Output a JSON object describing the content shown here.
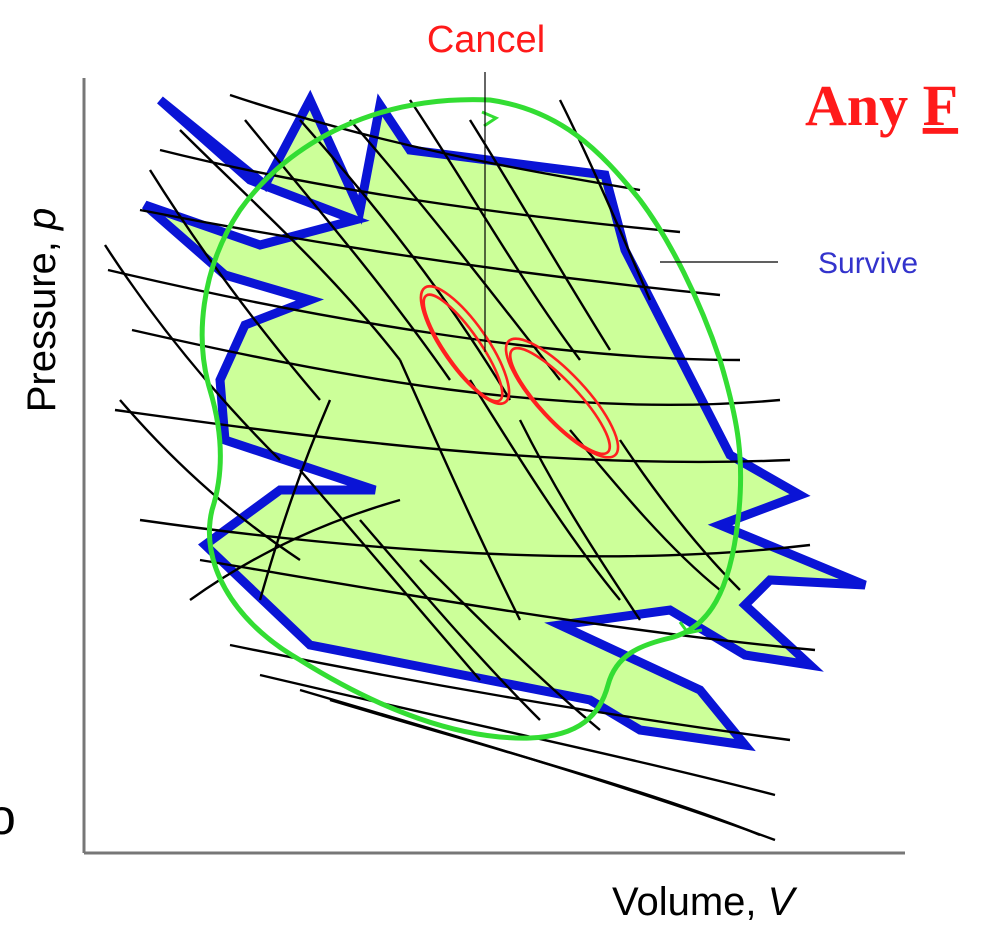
{
  "labels": {
    "cancel": "Cancel",
    "heading_prefix": "Any ",
    "heading_underlined": "F",
    "survive": "Survive",
    "x_axis": "Volume, ",
    "x_axis_var": "V",
    "y_axis": "Pressure, ",
    "y_axis_var": "p",
    "edge_char": "o"
  },
  "colors": {
    "region_fill": "#ccff99",
    "region_outline": "#0a14d6",
    "loop": "#33dd33",
    "cancel_ovals": "#ff2020",
    "curves": "#000000",
    "heading": "#ff1a1a",
    "survive": "#3333cc"
  }
}
